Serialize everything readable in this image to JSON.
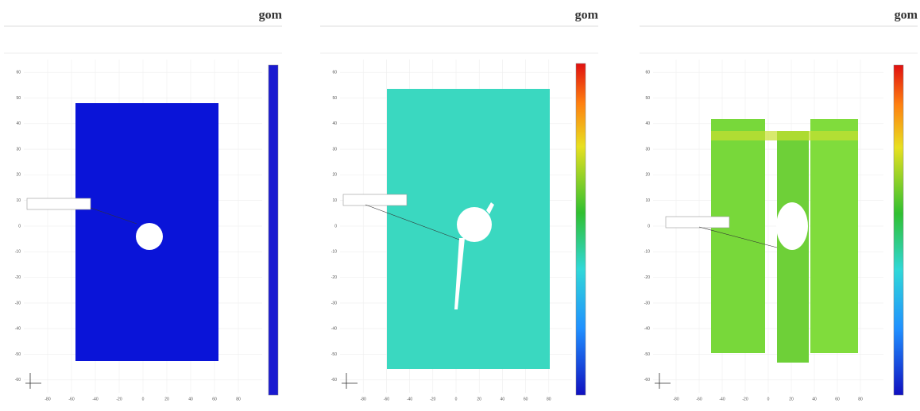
{
  "pages": [
    {
      "logo": "gom",
      "ylim": [
        -65,
        65
      ],
      "yticks": [
        60,
        50,
        40,
        30,
        20,
        10,
        0,
        -10,
        -20,
        -30,
        -40,
        -50,
        -60
      ],
      "xlim": [
        -100,
        100
      ],
      "xticks": [
        -80,
        -60,
        -40,
        -20,
        0,
        20,
        40,
        60,
        80
      ]
    },
    {
      "logo": "gom",
      "ylim": [
        -65,
        65
      ],
      "yticks": [
        60,
        50,
        40,
        30,
        20,
        10,
        0,
        -10,
        -20,
        -30,
        -40,
        -50,
        -60
      ],
      "xlim": [
        -100,
        100
      ],
      "xticks": [
        -80,
        -60,
        -40,
        -20,
        0,
        20,
        40,
        60,
        80
      ]
    },
    {
      "logo": "gom",
      "ylim": [
        -65,
        65
      ],
      "yticks": [
        60,
        50,
        40,
        30,
        20,
        10,
        0,
        -10,
        -20,
        -30,
        -40,
        -50,
        -60
      ],
      "xlim": [
        -100,
        100
      ],
      "xticks": [
        -80,
        -60,
        -40,
        -20,
        0,
        20,
        40,
        60,
        80
      ]
    }
  ]
}
